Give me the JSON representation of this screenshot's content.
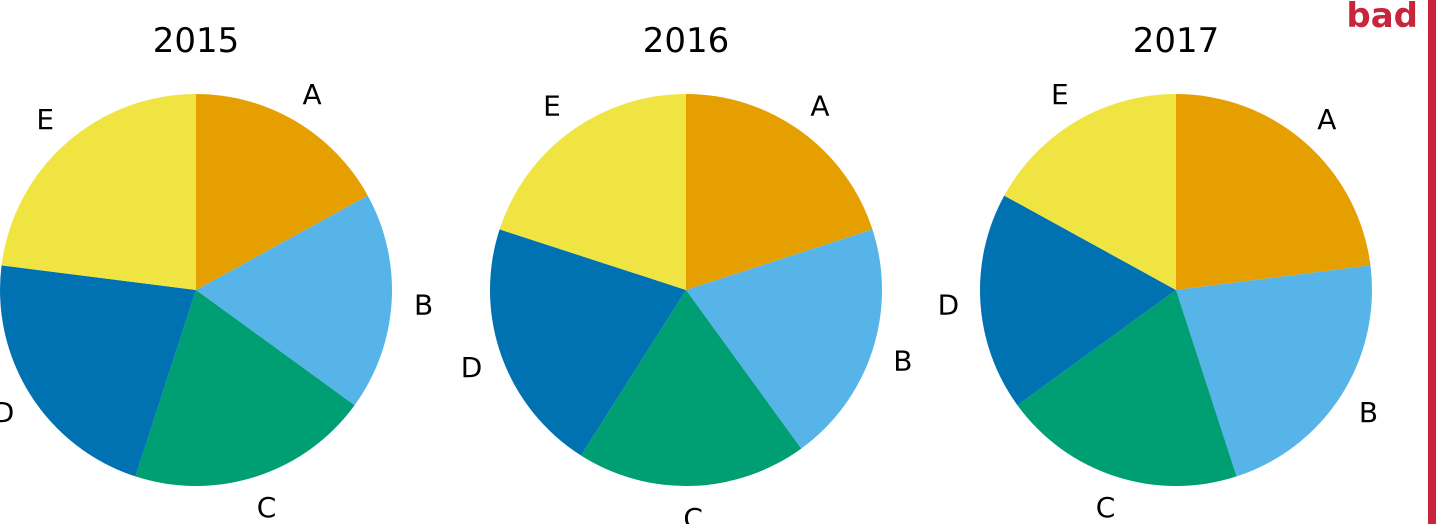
{
  "badge": "bad",
  "colors": {
    "A": "#E69F00",
    "B": "#56B4E9",
    "C": "#009E73",
    "D": "#0072B2",
    "E": "#F0E442",
    "badge": "#C8243C"
  },
  "chart_data": [
    {
      "type": "pie",
      "title": "2015",
      "categories": [
        "A",
        "B",
        "C",
        "D",
        "E"
      ],
      "values": [
        17,
        18,
        20,
        22,
        23
      ]
    },
    {
      "type": "pie",
      "title": "2016",
      "categories": [
        "A",
        "B",
        "C",
        "D",
        "E"
      ],
      "values": [
        20,
        20,
        19,
        21,
        20
      ]
    },
    {
      "type": "pie",
      "title": "2017",
      "categories": [
        "A",
        "B",
        "C",
        "D",
        "E"
      ],
      "values": [
        23,
        22,
        20,
        18,
        17
      ]
    }
  ]
}
